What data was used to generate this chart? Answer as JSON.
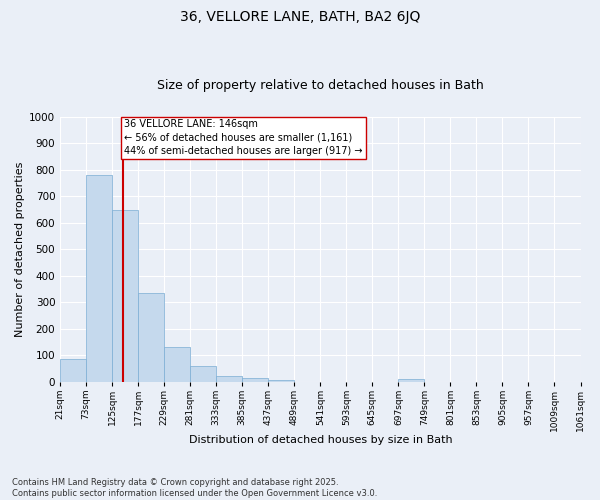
{
  "title1": "36, VELLORE LANE, BATH, BA2 6JQ",
  "title2": "Size of property relative to detached houses in Bath",
  "xlabel": "Distribution of detached houses by size in Bath",
  "ylabel": "Number of detached properties",
  "bar_values": [
    85,
    780,
    648,
    335,
    130,
    58,
    22,
    15,
    8,
    0,
    0,
    0,
    0,
    10,
    0,
    0,
    0,
    0,
    0,
    0
  ],
  "bin_edges": [
    21,
    73,
    125,
    177,
    229,
    281,
    333,
    385,
    437,
    489,
    541,
    593,
    645,
    697,
    749,
    801,
    853,
    905,
    957,
    1009,
    1061
  ],
  "tick_labels": [
    "21sqm",
    "73sqm",
    "125sqm",
    "177sqm",
    "229sqm",
    "281sqm",
    "333sqm",
    "385sqm",
    "437sqm",
    "489sqm",
    "541sqm",
    "593sqm",
    "645sqm",
    "697sqm",
    "749sqm",
    "801sqm",
    "853sqm",
    "905sqm",
    "957sqm",
    "1009sqm",
    "1061sqm"
  ],
  "bar_color": "#c5d9ed",
  "bar_edge_color": "#7aadd4",
  "bg_color": "#eaeff7",
  "grid_color": "#ffffff",
  "vline_x": 146,
  "vline_color": "#cc0000",
  "annotation_text": "36 VELLORE LANE: 146sqm\n← 56% of detached houses are smaller (1,161)\n44% of semi-detached houses are larger (917) →",
  "annotation_box_color": "#ffffff",
  "annotation_box_edge": "#cc0000",
  "ylim": [
    0,
    1000
  ],
  "yticks": [
    0,
    100,
    200,
    300,
    400,
    500,
    600,
    700,
    800,
    900,
    1000
  ],
  "footnote": "Contains HM Land Registry data © Crown copyright and database right 2025.\nContains public sector information licensed under the Open Government Licence v3.0.",
  "title1_fontsize": 10,
  "title2_fontsize": 9,
  "xlabel_fontsize": 8,
  "ylabel_fontsize": 8,
  "tick_fontsize": 6.5,
  "annot_fontsize": 7,
  "footnote_fontsize": 6
}
